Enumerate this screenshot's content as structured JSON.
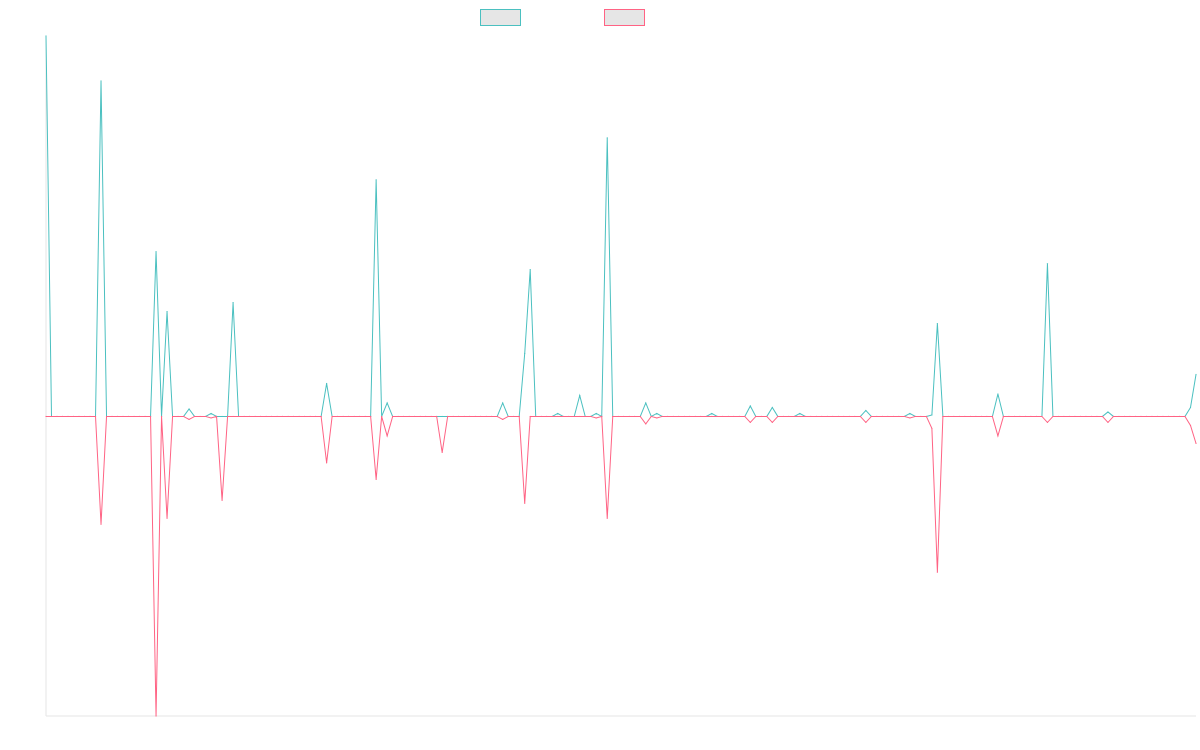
{
  "chart_data": {
    "type": "line",
    "title": "",
    "xlabel": "",
    "ylabel": "",
    "legend_position": "top-center",
    "grid": false,
    "x_range": [
      0,
      200
    ],
    "ylim": [
      -1,
      1.27
    ],
    "series": [
      {
        "name": "",
        "color": "#4bc0c0",
        "fill": "#e6e6e6",
        "values": [
          1.27,
          0,
          0,
          0,
          0,
          0,
          0,
          0,
          0,
          0,
          1.12,
          0,
          0,
          0,
          0,
          0,
          0,
          0,
          0,
          0,
          0.55,
          0,
          0.35,
          0,
          0,
          0,
          0.025,
          0,
          0,
          0,
          0.01,
          0,
          0,
          0,
          0.38,
          0,
          0,
          0,
          0,
          0,
          0,
          0,
          0,
          0,
          0,
          0,
          0,
          0,
          0,
          0,
          0,
          0.11,
          0,
          0,
          0,
          0,
          0,
          0,
          0,
          0,
          0.79,
          0,
          0.045,
          0,
          0,
          0,
          0,
          0,
          0,
          0,
          0,
          0,
          0,
          0,
          0,
          0,
          0,
          0,
          0,
          0,
          0,
          0,
          0,
          0.045,
          0,
          0,
          0,
          0.21,
          0.49,
          0,
          0,
          0,
          0,
          0.01,
          0,
          0,
          0,
          0.07,
          0,
          0,
          0.01,
          0,
          0.93,
          0,
          0,
          0,
          0,
          0,
          0,
          0.045,
          0,
          0.01,
          0,
          0,
          0,
          0,
          0,
          0,
          0,
          0,
          0,
          0.01,
          0,
          0,
          0,
          0,
          0,
          0,
          0.035,
          0,
          0,
          0,
          0.03,
          0,
          0,
          0,
          0,
          0.01,
          0,
          0,
          0,
          0,
          0,
          0,
          0,
          0,
          0,
          0,
          0,
          0.02,
          0,
          0,
          0,
          0,
          0,
          0,
          0,
          0.01,
          0,
          0,
          0,
          0.005,
          0.31,
          0,
          0,
          0,
          0,
          0,
          0,
          0,
          0,
          0,
          0,
          0.075,
          0,
          0,
          0,
          0,
          0,
          0,
          0,
          0,
          0.51,
          0,
          0,
          0,
          0,
          0,
          0,
          0,
          0,
          0,
          0,
          0.015,
          0,
          0,
          0,
          0,
          0,
          0,
          0,
          0,
          0,
          0,
          0,
          0,
          0,
          0,
          0.03,
          0.14
        ]
      },
      {
        "name": "",
        "color": "#ff6384",
        "fill": "#e6e6e6",
        "values": [
          0,
          0,
          0,
          0,
          0,
          0,
          0,
          0,
          0,
          0,
          -0.36,
          0,
          0,
          0,
          0,
          0,
          0,
          0,
          0,
          0,
          -1,
          0,
          -0.34,
          0,
          0,
          0,
          -0.01,
          0,
          0,
          0,
          -0.005,
          0,
          -0.28,
          0,
          0,
          0,
          0,
          0,
          0,
          0,
          0,
          0,
          0,
          0,
          0,
          0,
          0,
          0,
          0,
          0,
          0,
          -0.155,
          0,
          0,
          0,
          0,
          0,
          0,
          0,
          0,
          -0.21,
          0,
          -0.065,
          0,
          0,
          0,
          0,
          0,
          0,
          0,
          0,
          0,
          -0.12,
          0,
          0,
          0,
          0,
          0,
          0,
          0,
          0,
          0,
          0,
          -0.01,
          0,
          0,
          0,
          -0.29,
          0,
          0,
          0,
          0,
          0,
          0,
          0,
          0,
          0,
          0,
          0,
          0,
          -0.005,
          0,
          -0.34,
          0,
          0,
          0,
          0,
          0,
          0,
          -0.025,
          0,
          -0.005,
          0,
          0,
          0,
          0,
          0,
          0,
          0,
          0,
          0,
          0,
          0,
          0,
          0,
          0,
          0,
          0,
          -0.02,
          0,
          0,
          0,
          -0.02,
          0,
          0,
          0,
          0,
          0,
          0,
          0,
          0,
          0,
          0,
          0,
          0,
          0,
          0,
          0,
          0,
          -0.02,
          0,
          0,
          0,
          0,
          0,
          0,
          0,
          -0.005,
          0,
          0,
          0,
          -0.04,
          -0.52,
          0,
          0,
          0,
          0,
          0,
          0,
          0,
          0,
          0,
          0,
          -0.065,
          0,
          0,
          0,
          0,
          0,
          0,
          0,
          0,
          -0.02,
          0,
          0,
          0,
          0,
          0,
          0,
          0,
          0,
          0,
          0,
          -0.02,
          0,
          0,
          0,
          0,
          0,
          0,
          0,
          0,
          0,
          0,
          0,
          0,
          0,
          0,
          -0.03,
          -0.09
        ]
      }
    ]
  }
}
